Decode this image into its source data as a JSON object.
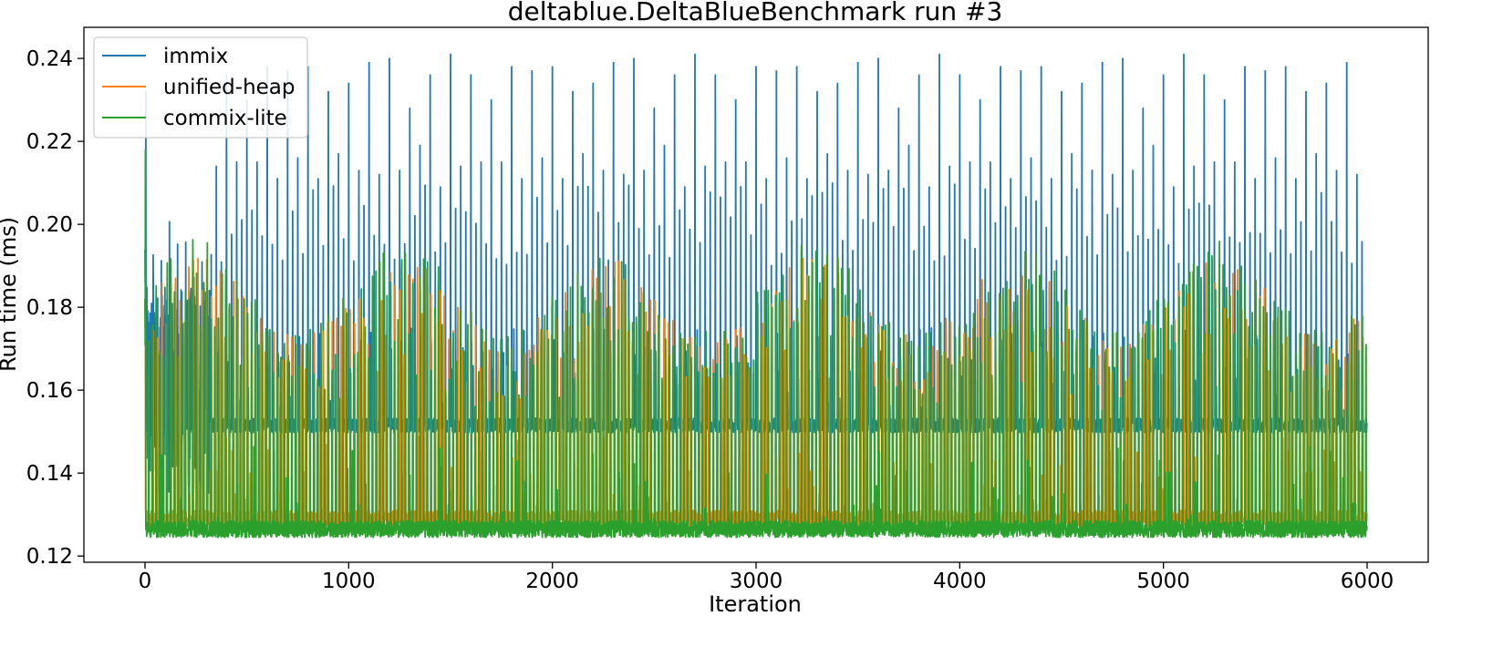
{
  "chart_data": {
    "type": "line",
    "title": "deltablue.DeltaBlueBenchmark run #3",
    "xlabel": "Iteration",
    "ylabel": "Run time (ms)",
    "xlim": [
      -300,
      6300
    ],
    "ylim": [
      0.1185,
      0.2475
    ],
    "x_ticks": [
      0,
      1000,
      2000,
      3000,
      4000,
      5000,
      6000
    ],
    "x_tick_labels": [
      "0",
      "1000",
      "2000",
      "3000",
      "4000",
      "5000",
      "6000"
    ],
    "y_ticks": [
      0.12,
      0.14,
      0.16,
      0.18,
      0.2,
      0.22,
      0.24
    ],
    "y_tick_labels": [
      "0.12",
      "0.14",
      "0.16",
      "0.18",
      "0.20",
      "0.22",
      "0.24"
    ],
    "grid": false,
    "legend_position": "top-left",
    "iterations": 6000,
    "series": [
      {
        "name": "immix",
        "color": "#1f77b4",
        "start": [
          0.194,
          0.186,
          0.19,
          0.183,
          0.232,
          0.175
        ],
        "baseline": 0.1515,
        "spike_interval": 50,
        "spike_peaks": [
          0.24,
          0.215,
          0.232,
          0.219,
          0.238,
          0.213,
          0.241,
          0.216
        ]
      },
      {
        "name": "unified-heap",
        "color": "#ff7f0e",
        "start": [
          0.182,
          0.175,
          0.18
        ],
        "baseline": 0.129,
        "oscillation_range": [
          0.128,
          0.192
        ]
      },
      {
        "name": "commix-lite",
        "color": "#2ca02c",
        "start": [
          0.182,
          0.171,
          0.218,
          0.17
        ],
        "baseline": 0.1265,
        "oscillation_range": [
          0.125,
          0.197
        ]
      }
    ]
  }
}
